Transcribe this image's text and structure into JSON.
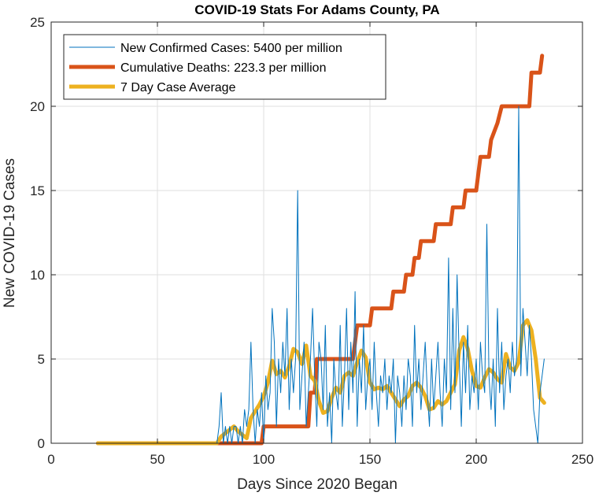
{
  "chart_data": {
    "type": "line",
    "title": "COVID-19 Stats For Adams County, PA",
    "xlabel": "Days Since 2020 Began",
    "ylabel": "New COVID-19 Cases",
    "xlim": [
      0,
      250
    ],
    "ylim": [
      0,
      25
    ],
    "xticks": [
      "0",
      "50",
      "100",
      "150",
      "200",
      "250"
    ],
    "yticks": [
      "0",
      "5",
      "10",
      "15",
      "20",
      "25"
    ],
    "grid": true,
    "legend_position": "top-left",
    "series": [
      {
        "name": "New Confirmed Cases: 5400 per million",
        "color": "#0072BD",
        "points": [
          [
            22,
            0
          ],
          [
            78,
            0
          ],
          [
            79,
            1
          ],
          [
            80,
            3
          ],
          [
            81,
            0
          ],
          [
            82,
            1
          ],
          [
            83,
            0
          ],
          [
            84,
            1
          ],
          [
            85,
            0
          ],
          [
            86,
            1
          ],
          [
            87,
            1
          ],
          [
            88,
            0
          ],
          [
            89,
            1
          ],
          [
            90,
            0
          ],
          [
            91,
            2
          ],
          [
            92,
            1
          ],
          [
            93,
            2
          ],
          [
            94,
            6
          ],
          [
            95,
            2
          ],
          [
            96,
            0
          ],
          [
            97,
            2
          ],
          [
            98,
            1
          ],
          [
            99,
            3
          ],
          [
            100,
            0
          ],
          [
            101,
            4
          ],
          [
            102,
            2
          ],
          [
            103,
            3
          ],
          [
            104,
            8
          ],
          [
            105,
            6
          ],
          [
            106,
            1
          ],
          [
            107,
            5
          ],
          [
            108,
            3
          ],
          [
            109,
            6
          ],
          [
            110,
            4
          ],
          [
            111,
            8
          ],
          [
            112,
            2
          ],
          [
            113,
            5
          ],
          [
            114,
            3
          ],
          [
            115,
            5
          ],
          [
            116,
            15
          ],
          [
            117,
            2
          ],
          [
            118,
            4
          ],
          [
            119,
            6
          ],
          [
            120,
            1
          ],
          [
            121,
            3
          ],
          [
            122,
            5
          ],
          [
            123,
            8
          ],
          [
            124,
            4
          ],
          [
            125,
            1
          ],
          [
            126,
            6
          ],
          [
            127,
            5
          ],
          [
            128,
            2
          ],
          [
            129,
            7
          ],
          [
            130,
            1
          ],
          [
            131,
            3
          ],
          [
            132,
            0
          ],
          [
            133,
            5
          ],
          [
            134,
            3
          ],
          [
            135,
            2
          ],
          [
            136,
            7
          ],
          [
            137,
            1
          ],
          [
            138,
            4
          ],
          [
            139,
            8
          ],
          [
            140,
            2
          ],
          [
            141,
            6
          ],
          [
            142,
            3
          ],
          [
            143,
            9
          ],
          [
            144,
            1
          ],
          [
            145,
            5
          ],
          [
            146,
            3
          ],
          [
            147,
            7
          ],
          [
            148,
            2
          ],
          [
            149,
            4
          ],
          [
            150,
            5
          ],
          [
            151,
            2
          ],
          [
            152,
            6
          ],
          [
            153,
            3
          ],
          [
            154,
            1
          ],
          [
            155,
            4
          ],
          [
            156,
            3
          ],
          [
            157,
            5
          ],
          [
            158,
            2
          ],
          [
            159,
            4
          ],
          [
            160,
            3
          ],
          [
            161,
            5
          ],
          [
            162,
            0
          ],
          [
            163,
            4
          ],
          [
            164,
            3
          ],
          [
            165,
            1
          ],
          [
            166,
            4
          ],
          [
            167,
            2
          ],
          [
            168,
            5
          ],
          [
            169,
            4
          ],
          [
            170,
            1
          ],
          [
            171,
            7
          ],
          [
            172,
            3
          ],
          [
            173,
            5
          ],
          [
            174,
            2
          ],
          [
            175,
            4
          ],
          [
            176,
            6
          ],
          [
            177,
            3
          ],
          [
            178,
            1
          ],
          [
            179,
            5
          ],
          [
            180,
            2
          ],
          [
            181,
            4
          ],
          [
            182,
            6
          ],
          [
            183,
            3
          ],
          [
            184,
            1
          ],
          [
            185,
            5
          ],
          [
            186,
            3
          ],
          [
            187,
            11
          ],
          [
            188,
            2
          ],
          [
            189,
            8
          ],
          [
            190,
            3
          ],
          [
            191,
            10
          ],
          [
            192,
            5
          ],
          [
            193,
            1
          ],
          [
            194,
            6
          ],
          [
            195,
            3
          ],
          [
            196,
            7
          ],
          [
            197,
            2
          ],
          [
            198,
            4
          ],
          [
            199,
            3
          ],
          [
            200,
            5
          ],
          [
            201,
            2
          ],
          [
            202,
            6
          ],
          [
            203,
            4
          ],
          [
            204,
            3
          ],
          [
            205,
            13
          ],
          [
            206,
            4
          ],
          [
            207,
            2
          ],
          [
            208,
            5
          ],
          [
            209,
            1
          ],
          [
            210,
            8
          ],
          [
            211,
            3
          ],
          [
            212,
            6
          ],
          [
            213,
            2
          ],
          [
            214,
            4
          ],
          [
            215,
            5
          ],
          [
            216,
            3
          ],
          [
            217,
            6
          ],
          [
            218,
            4
          ],
          [
            219,
            5
          ],
          [
            220,
            20
          ],
          [
            221,
            4
          ],
          [
            222,
            8
          ],
          [
            223,
            6
          ],
          [
            224,
            4
          ],
          [
            225,
            7
          ],
          [
            226,
            5
          ],
          [
            227,
            2
          ],
          [
            228,
            1
          ],
          [
            229,
            0
          ],
          [
            230,
            3
          ],
          [
            231,
            4
          ],
          [
            232,
            5
          ]
        ]
      },
      {
        "name": "Cumulative Deaths: 223.3 per million",
        "color": "#D95319",
        "points": [
          [
            22,
            0
          ],
          [
            99,
            0
          ],
          [
            100,
            1
          ],
          [
            121,
            1
          ],
          [
            122,
            3
          ],
          [
            124,
            3
          ],
          [
            125,
            5
          ],
          [
            142,
            5
          ],
          [
            143,
            6
          ],
          [
            144,
            7
          ],
          [
            150,
            7
          ],
          [
            151,
            8
          ],
          [
            160,
            8
          ],
          [
            161,
            9
          ],
          [
            166,
            9
          ],
          [
            167,
            10
          ],
          [
            170,
            10
          ],
          [
            171,
            11
          ],
          [
            173,
            11
          ],
          [
            174,
            12
          ],
          [
            180,
            12
          ],
          [
            181,
            13
          ],
          [
            188,
            13
          ],
          [
            189,
            14
          ],
          [
            194,
            14
          ],
          [
            195,
            15
          ],
          [
            200,
            15
          ],
          [
            201,
            16
          ],
          [
            202,
            17
          ],
          [
            206,
            17
          ],
          [
            207,
            18
          ],
          [
            210,
            19
          ],
          [
            212,
            20
          ],
          [
            225,
            20
          ],
          [
            226,
            22
          ],
          [
            230,
            22
          ],
          [
            231,
            23
          ]
        ]
      },
      {
        "name": "7 Day Case Average",
        "color": "#EDB120",
        "points": [
          [
            22,
            0
          ],
          [
            78,
            0
          ],
          [
            80,
            0.4
          ],
          [
            82,
            0.6
          ],
          [
            84,
            0.8
          ],
          [
            86,
            1.0
          ],
          [
            88,
            0.7
          ],
          [
            90,
            0.5
          ],
          [
            92,
            0.3
          ],
          [
            94,
            1.5
          ],
          [
            96,
            1.9
          ],
          [
            98,
            2.3
          ],
          [
            100,
            2.8
          ],
          [
            102,
            3.6
          ],
          [
            104,
            4.9
          ],
          [
            106,
            4.1
          ],
          [
            108,
            4.3
          ],
          [
            110,
            3.9
          ],
          [
            112,
            4.6
          ],
          [
            114,
            5.6
          ],
          [
            116,
            5.4
          ],
          [
            118,
            4.7
          ],
          [
            120,
            5.8
          ],
          [
            122,
            4.0
          ],
          [
            124,
            3.7
          ],
          [
            126,
            2.5
          ],
          [
            128,
            1.8
          ],
          [
            130,
            1.9
          ],
          [
            132,
            2.7
          ],
          [
            134,
            3.3
          ],
          [
            136,
            3.0
          ],
          [
            138,
            4.0
          ],
          [
            140,
            4.2
          ],
          [
            142,
            4.0
          ],
          [
            144,
            4.8
          ],
          [
            146,
            5.5
          ],
          [
            148,
            5.1
          ],
          [
            150,
            3.6
          ],
          [
            152,
            3.2
          ],
          [
            154,
            3.3
          ],
          [
            156,
            3.2
          ],
          [
            158,
            3.4
          ],
          [
            160,
            3.0
          ],
          [
            162,
            2.6
          ],
          [
            164,
            2.2
          ],
          [
            166,
            2.6
          ],
          [
            168,
            2.8
          ],
          [
            170,
            3.4
          ],
          [
            172,
            3.6
          ],
          [
            174,
            3.3
          ],
          [
            176,
            2.8
          ],
          [
            178,
            2.0
          ],
          [
            180,
            2.1
          ],
          [
            182,
            2.5
          ],
          [
            184,
            2.3
          ],
          [
            186,
            2.5
          ],
          [
            188,
            3.0
          ],
          [
            190,
            3.5
          ],
          [
            192,
            5.5
          ],
          [
            194,
            6.3
          ],
          [
            196,
            5.6
          ],
          [
            198,
            4.3
          ],
          [
            200,
            3.4
          ],
          [
            202,
            3.3
          ],
          [
            204,
            3.9
          ],
          [
            206,
            4.4
          ],
          [
            208,
            4.2
          ],
          [
            210,
            3.8
          ],
          [
            212,
            3.6
          ],
          [
            214,
            5.3
          ],
          [
            216,
            4.5
          ],
          [
            218,
            4.3
          ],
          [
            220,
            4.8
          ],
          [
            222,
            7.0
          ],
          [
            224,
            7.3
          ],
          [
            226,
            6.7
          ],
          [
            228,
            5.0
          ],
          [
            230,
            2.7
          ],
          [
            232,
            2.4
          ]
        ]
      }
    ]
  }
}
